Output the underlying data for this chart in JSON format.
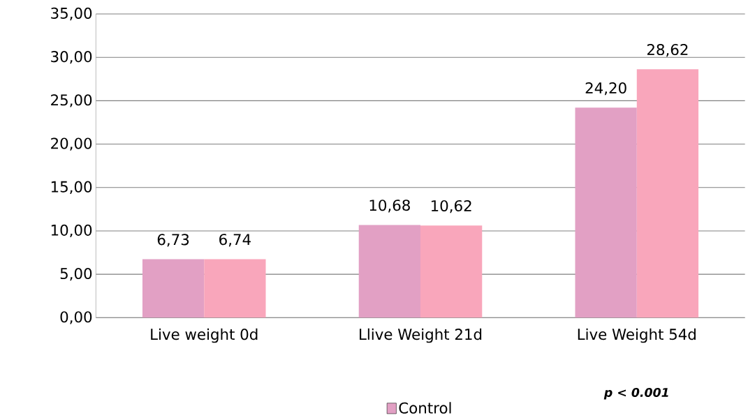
{
  "chart_data": {
    "type": "bar",
    "categories": [
      "Live weight 0d",
      "Llive Weight 21d",
      "Live Weight 54d"
    ],
    "series": [
      {
        "name": "Control",
        "color": "#e2a0c4",
        "values": [
          6.73,
          10.68,
          24.2
        ],
        "value_labels": [
          "6,73",
          "10,68",
          "24,20"
        ]
      },
      {
        "color": "#f9a6bb",
        "values": [
          6.74,
          10.62,
          28.62
        ],
        "value_labels": [
          "6,74",
          "10,62",
          "28,62"
        ]
      }
    ],
    "ylim": [
      0,
      35
    ],
    "yticks": [
      {
        "value": 0,
        "label": "0,00"
      },
      {
        "value": 5,
        "label": "5,00"
      },
      {
        "value": 10,
        "label": "10,00"
      },
      {
        "value": 15,
        "label": "15,00"
      },
      {
        "value": 20,
        "label": "20,00"
      },
      {
        "value": 25,
        "label": "25,00"
      },
      {
        "value": 30,
        "label": "30,00"
      },
      {
        "value": 35,
        "label": "35,00"
      }
    ],
    "grid": "y",
    "legend": "bottom",
    "annotations": [
      "p < 0.001"
    ]
  }
}
